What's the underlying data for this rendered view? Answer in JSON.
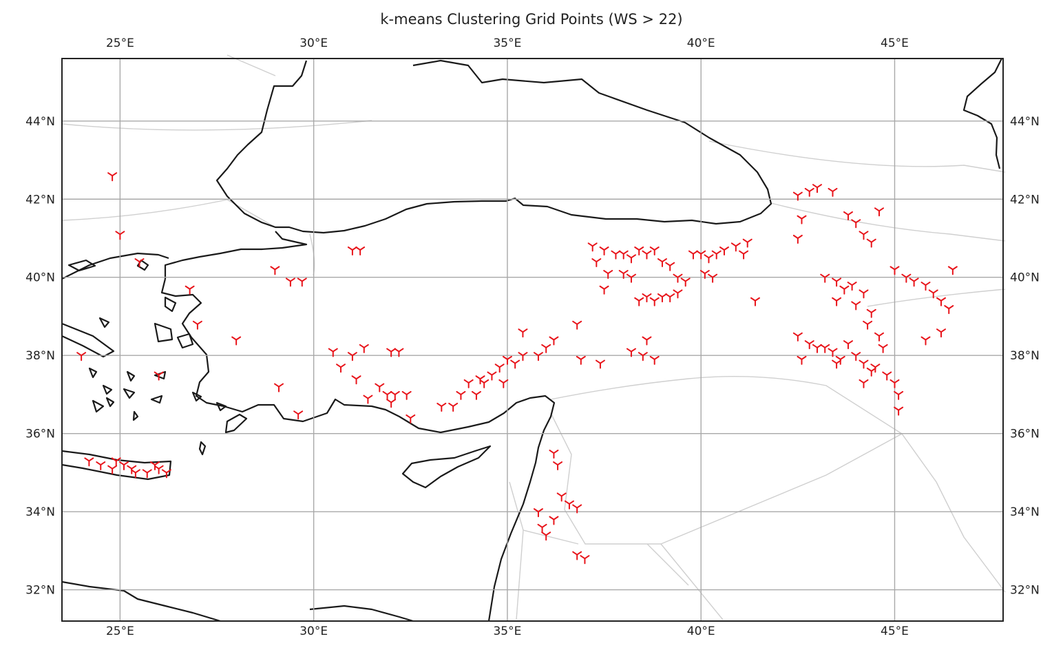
{
  "title": "k-means Clustering Grid Points (WS > 22)",
  "marker_color": "#e8141a",
  "coastline_color": "#1a1a1a",
  "border_color": "#cfcfcf",
  "grid_color": "#a8a8a8",
  "marker_symbol": "tri-down",
  "map": {
    "projection": "PlateCarree",
    "lon_range": [
      23.5,
      47.8
    ],
    "lat_range": [
      31.2,
      45.6
    ],
    "lon_ticks": [
      {
        "value": 25,
        "label": "25°E"
      },
      {
        "value": 30,
        "label": "30°E"
      },
      {
        "value": 35,
        "label": "35°E"
      },
      {
        "value": 40,
        "label": "40°E"
      },
      {
        "value": 45,
        "label": "45°E"
      }
    ],
    "lat_ticks": [
      {
        "value": 32,
        "label": "32°N"
      },
      {
        "value": 34,
        "label": "34°N"
      },
      {
        "value": 36,
        "label": "36°N"
      },
      {
        "value": 38,
        "label": "38°N"
      },
      {
        "value": 40,
        "label": "40°N"
      },
      {
        "value": 42,
        "label": "42°N"
      },
      {
        "value": 44,
        "label": "44°N"
      }
    ]
  },
  "points": [
    [
      24.8,
      42.6
    ],
    [
      25.0,
      41.1
    ],
    [
      25.5,
      40.4
    ],
    [
      26.8,
      39.7
    ],
    [
      27.0,
      38.8
    ],
    [
      28.0,
      38.4
    ],
    [
      29.0,
      40.2
    ],
    [
      29.4,
      39.9
    ],
    [
      29.7,
      39.9
    ],
    [
      29.1,
      37.2
    ],
    [
      29.6,
      36.5
    ],
    [
      24.0,
      38.0
    ],
    [
      26.0,
      37.5
    ],
    [
      24.2,
      35.3
    ],
    [
      24.5,
      35.2
    ],
    [
      24.8,
      35.1
    ],
    [
      25.1,
      35.2
    ],
    [
      25.4,
      35.0
    ],
    [
      25.7,
      35.0
    ],
    [
      25.9,
      35.2
    ],
    [
      26.2,
      35.0
    ],
    [
      26.0,
      35.1
    ],
    [
      24.9,
      35.3
    ],
    [
      25.3,
      35.1
    ],
    [
      30.5,
      38.1
    ],
    [
      30.7,
      37.7
    ],
    [
      31.0,
      38.0
    ],
    [
      31.1,
      37.4
    ],
    [
      31.3,
      38.2
    ],
    [
      31.4,
      36.9
    ],
    [
      31.7,
      37.2
    ],
    [
      32.0,
      38.1
    ],
    [
      32.1,
      37.0
    ],
    [
      32.2,
      38.1
    ],
    [
      32.4,
      37.0
    ],
    [
      32.5,
      36.4
    ],
    [
      31.9,
      37.0
    ],
    [
      32.0,
      36.8
    ],
    [
      31.0,
      40.7
    ],
    [
      31.2,
      40.7
    ],
    [
      33.3,
      36.7
    ],
    [
      33.6,
      36.7
    ],
    [
      33.8,
      37.0
    ],
    [
      34.0,
      37.3
    ],
    [
      34.2,
      37.0
    ],
    [
      34.4,
      37.3
    ],
    [
      34.6,
      37.5
    ],
    [
      34.8,
      37.7
    ],
    [
      35.0,
      37.9
    ],
    [
      35.2,
      37.8
    ],
    [
      35.4,
      38.0
    ],
    [
      35.4,
      38.6
    ],
    [
      35.8,
      38.0
    ],
    [
      36.0,
      38.2
    ],
    [
      36.2,
      38.4
    ],
    [
      36.8,
      38.8
    ],
    [
      36.9,
      37.9
    ],
    [
      37.4,
      37.8
    ],
    [
      34.3,
      37.4
    ],
    [
      34.9,
      37.3
    ],
    [
      37.2,
      40.8
    ],
    [
      37.3,
      40.4
    ],
    [
      37.5,
      40.7
    ],
    [
      37.6,
      40.1
    ],
    [
      37.8,
      40.6
    ],
    [
      38.0,
      40.6
    ],
    [
      38.2,
      40.5
    ],
    [
      38.4,
      40.7
    ],
    [
      38.6,
      40.6
    ],
    [
      38.8,
      40.7
    ],
    [
      39.0,
      40.4
    ],
    [
      39.2,
      40.3
    ],
    [
      39.4,
      40.0
    ],
    [
      39.6,
      39.9
    ],
    [
      37.5,
      39.7
    ],
    [
      38.0,
      40.1
    ],
    [
      38.2,
      40.0
    ],
    [
      38.4,
      39.4
    ],
    [
      38.6,
      39.5
    ],
    [
      38.8,
      39.4
    ],
    [
      39.0,
      39.5
    ],
    [
      39.2,
      39.5
    ],
    [
      39.4,
      39.6
    ],
    [
      39.8,
      40.6
    ],
    [
      40.0,
      40.6
    ],
    [
      40.2,
      40.5
    ],
    [
      40.4,
      40.6
    ],
    [
      40.6,
      40.7
    ],
    [
      40.9,
      40.8
    ],
    [
      41.1,
      40.6
    ],
    [
      41.2,
      40.9
    ],
    [
      41.4,
      39.4
    ],
    [
      40.3,
      40.0
    ],
    [
      40.1,
      40.1
    ],
    [
      38.2,
      38.1
    ],
    [
      38.5,
      38.0
    ],
    [
      38.6,
      38.4
    ],
    [
      38.8,
      37.9
    ],
    [
      42.5,
      42.1
    ],
    [
      42.8,
      42.2
    ],
    [
      43.0,
      42.3
    ],
    [
      43.4,
      42.2
    ],
    [
      42.6,
      41.5
    ],
    [
      42.5,
      41.0
    ],
    [
      43.8,
      41.6
    ],
    [
      44.0,
      41.4
    ],
    [
      44.2,
      41.1
    ],
    [
      44.4,
      40.9
    ],
    [
      44.6,
      41.7
    ],
    [
      43.2,
      40.0
    ],
    [
      43.5,
      39.9
    ],
    [
      43.7,
      39.7
    ],
    [
      43.9,
      39.8
    ],
    [
      44.2,
      39.6
    ],
    [
      44.4,
      39.1
    ],
    [
      43.5,
      39.4
    ],
    [
      44.0,
      39.3
    ],
    [
      44.3,
      38.8
    ],
    [
      44.6,
      38.5
    ],
    [
      44.7,
      38.2
    ],
    [
      44.5,
      37.7
    ],
    [
      44.8,
      37.5
    ],
    [
      45.0,
      37.3
    ],
    [
      45.1,
      37.0
    ],
    [
      45.1,
      36.6
    ],
    [
      42.5,
      38.5
    ],
    [
      42.8,
      38.3
    ],
    [
      43.0,
      38.2
    ],
    [
      43.2,
      38.2
    ],
    [
      43.4,
      38.1
    ],
    [
      43.6,
      37.9
    ],
    [
      43.8,
      38.3
    ],
    [
      44.0,
      38.0
    ],
    [
      44.2,
      37.8
    ],
    [
      44.4,
      37.6
    ],
    [
      42.6,
      37.9
    ],
    [
      43.5,
      37.8
    ],
    [
      44.2,
      37.3
    ],
    [
      45.0,
      40.2
    ],
    [
      45.3,
      40.0
    ],
    [
      45.5,
      39.9
    ],
    [
      45.8,
      39.8
    ],
    [
      46.0,
      39.6
    ],
    [
      46.2,
      39.4
    ],
    [
      46.4,
      39.2
    ],
    [
      46.5,
      40.2
    ],
    [
      45.8,
      38.4
    ],
    [
      46.2,
      38.6
    ],
    [
      36.2,
      35.5
    ],
    [
      36.3,
      35.2
    ],
    [
      36.4,
      34.4
    ],
    [
      36.6,
      34.2
    ],
    [
      36.8,
      34.1
    ],
    [
      36.2,
      33.8
    ],
    [
      35.8,
      34.0
    ],
    [
      35.9,
      33.6
    ],
    [
      36.0,
      33.4
    ],
    [
      36.8,
      32.9
    ],
    [
      37.0,
      32.8
    ]
  ]
}
